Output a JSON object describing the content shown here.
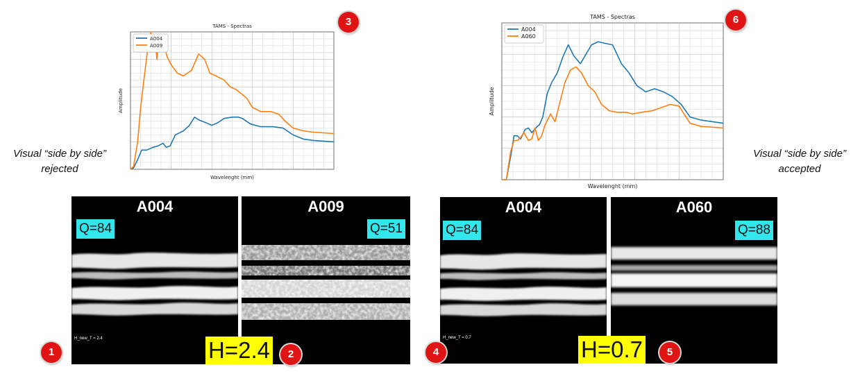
{
  "colors": {
    "series_blue": "#1f77b4",
    "series_orange": "#ff7f0e",
    "q_badge": "#33e6ec",
    "h_badge": "#ffff00",
    "marker": "#e01414"
  },
  "left": {
    "side_label": "Visual “side by side” rejected",
    "photo_a": {
      "title": "A004",
      "q": "Q=84",
      "h_text": "H_new_T = 2.4"
    },
    "photo_b": {
      "title": "A009",
      "q": "Q=51"
    },
    "h_badge": "H=2.4",
    "markers": {
      "photo_a": "1",
      "photo_b": "2",
      "chart": "3"
    }
  },
  "right": {
    "side_label": "Visual “side by side” accepted",
    "photo_a": {
      "title": "A004",
      "q": "Q=84",
      "h_text": "H_new_T = 0.7"
    },
    "photo_b": {
      "title": "A060",
      "q": "Q=88"
    },
    "h_badge": "H=0.7",
    "markers": {
      "photo_a": "4",
      "photo_b": "5",
      "chart": "6"
    }
  },
  "chart_data": [
    {
      "type": "line",
      "title": "TAMS - Spectras",
      "xlabel": "Wavelenght (mm)",
      "ylabel": "Amplitude",
      "xlim": [
        0,
        10
      ],
      "ylim": [
        0,
        1
      ],
      "grid": true,
      "legend": "top-left",
      "series": [
        {
          "name": "A004",
          "color": "#1f77b4",
          "x": [
            0.0,
            0.15,
            0.35,
            0.55,
            0.8,
            1.1,
            1.35,
            1.6,
            1.75,
            1.95,
            2.2,
            2.6,
            2.9,
            3.15,
            3.35,
            3.7,
            4.0,
            4.3,
            4.6,
            5.0,
            5.3,
            5.5,
            5.9,
            6.4,
            7.0,
            7.5,
            8.0,
            8.5,
            9.0,
            10.0
          ],
          "y": [
            0.0,
            0.01,
            0.07,
            0.14,
            0.14,
            0.16,
            0.17,
            0.19,
            0.16,
            0.17,
            0.25,
            0.28,
            0.32,
            0.38,
            0.36,
            0.34,
            0.32,
            0.34,
            0.37,
            0.38,
            0.38,
            0.37,
            0.33,
            0.31,
            0.31,
            0.3,
            0.25,
            0.22,
            0.21,
            0.2
          ]
        },
        {
          "name": "A009",
          "color": "#ff7f0e",
          "x": [
            0.0,
            0.15,
            0.35,
            0.5,
            0.7,
            0.85,
            1.0,
            1.1,
            1.2,
            1.3,
            1.4,
            1.55,
            1.65,
            1.8,
            2.0,
            2.3,
            2.6,
            3.0,
            3.35,
            3.65,
            3.9,
            4.2,
            4.6,
            4.9,
            5.2,
            5.7,
            6.0,
            6.4,
            6.9,
            7.3,
            7.6,
            8.0,
            8.5,
            9.0,
            10.0
          ],
          "y": [
            0.0,
            0.02,
            0.2,
            0.45,
            0.7,
            0.88,
            1.0,
            0.92,
            0.96,
            0.8,
            0.95,
            0.98,
            0.9,
            0.82,
            0.76,
            0.7,
            0.68,
            0.72,
            0.84,
            0.8,
            0.7,
            0.68,
            0.65,
            0.6,
            0.58,
            0.52,
            0.45,
            0.42,
            0.42,
            0.4,
            0.35,
            0.3,
            0.28,
            0.27,
            0.26
          ]
        }
      ]
    },
    {
      "type": "line",
      "title": "TAMS - Spectras",
      "xlabel": "Wavelenght (mm)",
      "ylabel": "Amplitude",
      "xlim": [
        0,
        10
      ],
      "ylim": [
        0,
        1
      ],
      "grid": true,
      "legend": "top-left",
      "series": [
        {
          "name": "A004",
          "color": "#1f77b4",
          "x": [
            0.0,
            0.2,
            0.4,
            0.55,
            0.7,
            0.85,
            1.05,
            1.2,
            1.35,
            1.6,
            1.7,
            1.85,
            2.05,
            2.25,
            2.5,
            2.75,
            3.0,
            3.25,
            3.55,
            3.8,
            4.05,
            4.35,
            4.65,
            5.0,
            5.4,
            5.75,
            6.1,
            6.5,
            6.9,
            7.3,
            7.7,
            8.1,
            8.5,
            9.0,
            10.0
          ],
          "y": [
            0.0,
            0.0,
            0.15,
            0.28,
            0.28,
            0.26,
            0.32,
            0.33,
            0.3,
            0.34,
            0.35,
            0.4,
            0.55,
            0.62,
            0.68,
            0.78,
            0.86,
            0.79,
            0.74,
            0.8,
            0.86,
            0.88,
            0.87,
            0.86,
            0.74,
            0.68,
            0.6,
            0.56,
            0.58,
            0.56,
            0.53,
            0.48,
            0.4,
            0.38,
            0.36
          ]
        },
        {
          "name": "A060",
          "color": "#ff7f0e",
          "x": [
            0.0,
            0.2,
            0.4,
            0.55,
            0.7,
            0.85,
            1.0,
            1.2,
            1.35,
            1.5,
            1.65,
            1.8,
            1.95,
            2.2,
            2.4,
            2.6,
            2.85,
            3.1,
            3.35,
            3.6,
            3.9,
            4.2,
            4.5,
            4.85,
            5.2,
            5.6,
            5.9,
            6.3,
            6.8,
            7.2,
            7.6,
            8.0,
            8.5,
            9.0,
            10.0
          ],
          "y": [
            0.0,
            0.0,
            0.18,
            0.25,
            0.25,
            0.27,
            0.3,
            0.25,
            0.26,
            0.33,
            0.25,
            0.28,
            0.35,
            0.42,
            0.37,
            0.48,
            0.62,
            0.7,
            0.72,
            0.68,
            0.6,
            0.56,
            0.48,
            0.44,
            0.43,
            0.43,
            0.42,
            0.43,
            0.44,
            0.46,
            0.48,
            0.47,
            0.36,
            0.34,
            0.33
          ]
        }
      ]
    }
  ]
}
